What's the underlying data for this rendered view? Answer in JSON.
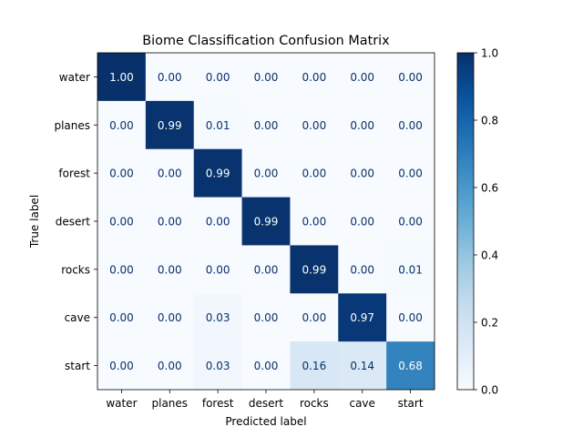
{
  "chart_data": {
    "type": "heatmap",
    "title": "Biome Classification Confusion Matrix",
    "xlabel": "Predicted label",
    "ylabel": "True label",
    "x_categories": [
      "water",
      "planes",
      "forest",
      "desert",
      "rocks",
      "cave",
      "start"
    ],
    "y_categories": [
      "water",
      "planes",
      "forest",
      "desert",
      "rocks",
      "cave",
      "start"
    ],
    "values": [
      [
        1.0,
        0.0,
        0.0,
        0.0,
        0.0,
        0.0,
        0.0
      ],
      [
        0.0,
        0.99,
        0.01,
        0.0,
        0.0,
        0.0,
        0.0
      ],
      [
        0.0,
        0.0,
        0.99,
        0.0,
        0.0,
        0.0,
        0.0
      ],
      [
        0.0,
        0.0,
        0.0,
        0.99,
        0.0,
        0.0,
        0.0
      ],
      [
        0.0,
        0.0,
        0.0,
        0.0,
        0.99,
        0.0,
        0.01
      ],
      [
        0.0,
        0.0,
        0.03,
        0.0,
        0.0,
        0.97,
        0.0
      ],
      [
        0.0,
        0.0,
        0.03,
        0.0,
        0.16,
        0.14,
        0.68
      ]
    ],
    "colorbar": {
      "range": [
        0.0,
        1.0
      ],
      "ticks": [
        "0.0",
        "0.2",
        "0.4",
        "0.6",
        "0.8",
        "1.0"
      ],
      "colormap": "Blues",
      "colormap_low": "#f7fbff",
      "colormap_high": "#08306b"
    },
    "text_colors": {
      "dark_cell_text": "#ffffff",
      "light_cell_text": "#08306b"
    },
    "grid": false
  }
}
